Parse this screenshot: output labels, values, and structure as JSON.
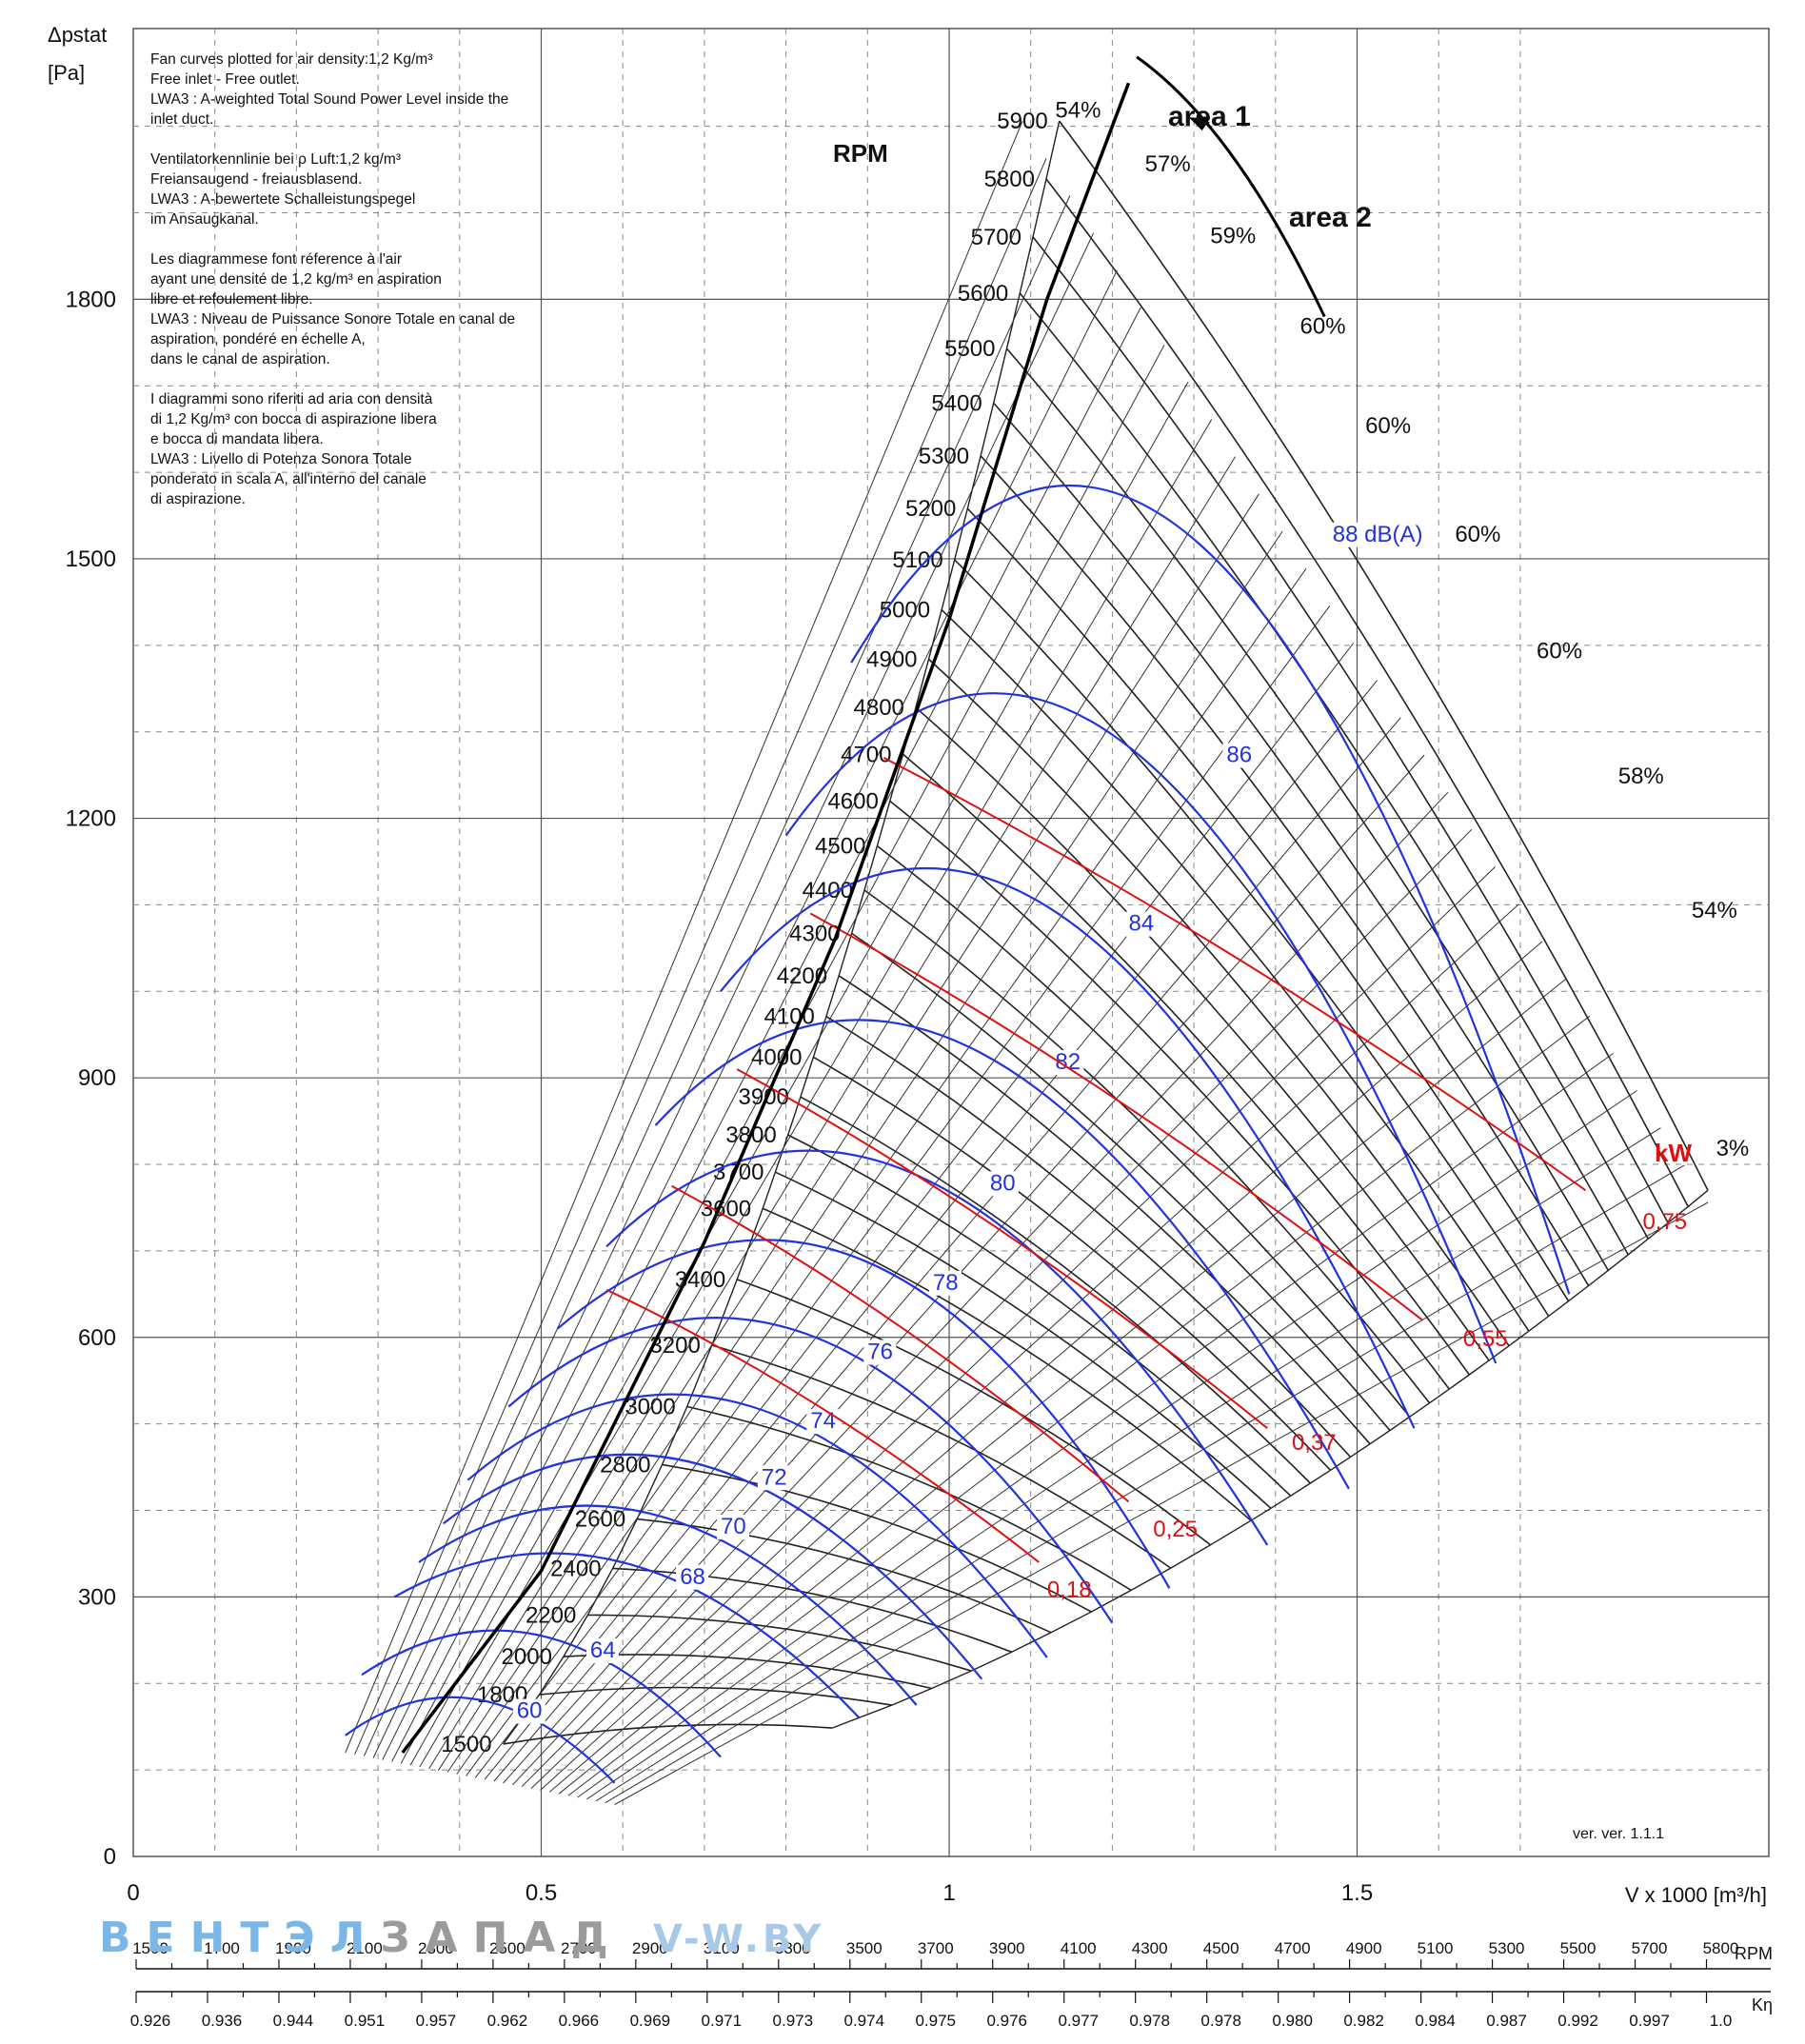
{
  "axis": {
    "y_label_line1": "Δpstat",
    "y_label_line2": "[Pa]",
    "x_label": "V x 1000 [m³/h]",
    "y_ticks": [
      {
        "value": 0,
        "label": "0"
      },
      {
        "value": 300,
        "label": "300"
      },
      {
        "value": 600,
        "label": "600"
      },
      {
        "value": 900,
        "label": "900"
      },
      {
        "value": 1200,
        "label": "1200"
      },
      {
        "value": 1500,
        "label": "1500"
      },
      {
        "value": 1800,
        "label": "1800"
      }
    ],
    "x_ticks": [
      {
        "value": 0,
        "label": "0"
      },
      {
        "value": 0.5,
        "label": "0.5"
      },
      {
        "value": 1,
        "label": "1"
      },
      {
        "value": 1.5,
        "label": "1.5"
      }
    ]
  },
  "notes": [
    [
      "Fan curves plotted for air density:1,2 Kg/m³",
      "Free inlet - Free outlet.",
      "LWA3 : A-weighted Total Sound Power Level inside the",
      "inlet duct."
    ],
    [
      "Ventilatorkennlinie bei ρ Luft:1,2 kg/m³",
      "Freiansaugend - freiausblasend.",
      "LWA3 : A-bewertete Schalleistungspegel",
      "im Ansaugkanal."
    ],
    [
      "Les diagrammese font réference à l'air",
      "ayant une densité de 1,2 kg/m³ en aspiration",
      "libre et refoulement libre.",
      "LWA3 : Niveau de Puissance Sonore Totale en canal de",
      "aspiration, pondéré en échelle A,",
      "dans le canal de aspiration."
    ],
    [
      "I diagrammi sono riferiti ad aria con densità",
      "di 1,2 Kg/m³ con bocca di aspirazione libera",
      "e bocca di mandata libera.",
      "LWA3 : Livello di Potenza Sonora Totale",
      "ponderato in scala A, all'interno del canale",
      "di aspirazione."
    ]
  ],
  "labels": {
    "rpm_title": "RPM",
    "area1": "area 1",
    "area2": "area 2",
    "kw": "kW",
    "version": "ver. ver. 1.1.1"
  },
  "brand": {
    "part1": "ВЕНТЭЛ",
    "part2": "ЗАПАД",
    "part3": "V-W.BY"
  },
  "bottom_scale": {
    "rpm_label": "RPM",
    "k_label": "Kη",
    "rpm_values": [
      "1500",
      "1700",
      "1900",
      "2100",
      "2300",
      "2500",
      "2700",
      "2900",
      "3100",
      "3300",
      "3500",
      "3700",
      "3900",
      "4100",
      "4300",
      "4500",
      "4700",
      "4900",
      "5100",
      "5300",
      "5500",
      "5700",
      "5800"
    ],
    "k_values": [
      "0.926",
      "0.936",
      "0.944",
      "0.951",
      "0.957",
      "0.962",
      "0.966",
      "0.969",
      "0.971",
      "0.973",
      "0.974",
      "0.975",
      "0.976",
      "0.977",
      "0.978",
      "0.978",
      "0.980",
      "0.982",
      "0.984",
      "0.987",
      "0.992",
      "0.997",
      "1.0"
    ]
  },
  "chart_data": {
    "type": "line",
    "title": "",
    "xlabel": "V x 1000 [m³/h]",
    "ylabel": "Δpstat [Pa]",
    "xlim": [
      0,
      1.8
    ],
    "ylim": [
      0,
      2100
    ],
    "grid": true,
    "speed_curves": [
      {
        "rpm": "1500",
        "y0": 130
      },
      {
        "rpm": "1800",
        "y0": 187
      },
      {
        "rpm": "2000",
        "y0": 231
      },
      {
        "rpm": "2200",
        "y0": 279
      },
      {
        "rpm": "2400",
        "y0": 333
      },
      {
        "rpm": "2600",
        "y0": 390
      },
      {
        "rpm": "2800",
        "y0": 453
      },
      {
        "rpm": "3000",
        "y0": 520
      },
      {
        "rpm": "3200",
        "y0": 591
      },
      {
        "rpm": "3400",
        "y0": 667
      },
      {
        "rpm": "3600",
        "y0": 749
      },
      {
        "rpm": "3700",
        "y0": 791
      },
      {
        "rpm": "3800",
        "y0": 834
      },
      {
        "rpm": "3900",
        "y0": 878
      },
      {
        "rpm": "4000",
        "y0": 924
      },
      {
        "rpm": "4100",
        "y0": 971
      },
      {
        "rpm": "4200",
        "y0": 1018
      },
      {
        "rpm": "4300",
        "y0": 1067
      },
      {
        "rpm": "4400",
        "y0": 1117
      },
      {
        "rpm": "4500",
        "y0": 1168
      },
      {
        "rpm": "4600",
        "y0": 1220
      },
      {
        "rpm": "4700",
        "y0": 1274
      },
      {
        "rpm": "4800",
        "y0": 1328
      },
      {
        "rpm": "4900",
        "y0": 1384
      },
      {
        "rpm": "5000",
        "y0": 1441
      },
      {
        "rpm": "5100",
        "y0": 1499
      },
      {
        "rpm": "5200",
        "y0": 1558
      },
      {
        "rpm": "5300",
        "y0": 1619
      },
      {
        "rpm": "5400",
        "y0": 1680
      },
      {
        "rpm": "5500",
        "y0": 1743
      },
      {
        "rpm": "5600",
        "y0": 1807
      },
      {
        "rpm": "5700",
        "y0": 1872
      },
      {
        "rpm": "5800",
        "y0": 1939
      },
      {
        "rpm": "5900",
        "y0": 2006
      }
    ],
    "efficiency_labels": [
      {
        "label": "54%",
        "x": 1.13,
        "y": 2010
      },
      {
        "label": "57%",
        "x": 1.24,
        "y": 1948
      },
      {
        "label": "59%",
        "x": 1.32,
        "y": 1865
      },
      {
        "label": "60%",
        "x": 1.43,
        "y": 1760
      },
      {
        "label": "60%",
        "x": 1.51,
        "y": 1645
      },
      {
        "label": "60%",
        "x": 1.62,
        "y": 1520
      },
      {
        "label": "60%",
        "x": 1.72,
        "y": 1385
      },
      {
        "label": "58%",
        "x": 1.82,
        "y": 1240
      },
      {
        "label": "54%",
        "x": 1.91,
        "y": 1085
      },
      {
        "label": "3%",
        "x": 1.94,
        "y": 810
      }
    ],
    "sound_curves": [
      {
        "label": "60",
        "start": [
          0.26,
          140
        ],
        "peak": [
          0.42,
          185
        ],
        "end": [
          0.59,
          85
        ],
        "label_at": [
          0.47,
          160
        ]
      },
      {
        "label": "64",
        "start": [
          0.28,
          210
        ],
        "peak": [
          0.5,
          260
        ],
        "end": [
          0.72,
          115
        ],
        "label_at": [
          0.56,
          230
        ]
      },
      {
        "label": "68",
        "start": [
          0.32,
          300
        ],
        "peak": [
          0.6,
          345
        ],
        "end": [
          0.89,
          160
        ],
        "label_at": [
          0.67,
          315
        ]
      },
      {
        "label": "70",
        "start": [
          0.35,
          340
        ],
        "peak": [
          0.64,
          400
        ],
        "end": [
          0.96,
          175
        ],
        "label_at": [
          0.72,
          373
        ]
      },
      {
        "label": "72",
        "start": [
          0.38,
          385
        ],
        "peak": [
          0.69,
          460
        ],
        "end": [
          1.04,
          205
        ],
        "label_at": [
          0.77,
          430
        ]
      },
      {
        "label": "74",
        "start": [
          0.41,
          435
        ],
        "peak": [
          0.75,
          530
        ],
        "end": [
          1.12,
          230
        ],
        "label_at": [
          0.83,
          495
        ]
      },
      {
        "label": "76",
        "start": [
          0.46,
          520
        ],
        "peak": [
          0.82,
          615
        ],
        "end": [
          1.2,
          270
        ],
        "label_at": [
          0.9,
          575
        ]
      },
      {
        "label": "78",
        "start": [
          0.52,
          610
        ],
        "peak": [
          0.9,
          700
        ],
        "end": [
          1.27,
          310
        ],
        "label_at": [
          0.98,
          655
        ]
      },
      {
        "label": "80",
        "start": [
          0.58,
          705
        ],
        "peak": [
          0.94,
          800
        ],
        "end": [
          1.39,
          360
        ],
        "label_at": [
          1.05,
          770
        ]
      },
      {
        "label": "82",
        "start": [
          0.64,
          845
        ],
        "peak": [
          1.01,
          945
        ],
        "end": [
          1.49,
          425
        ],
        "label_at": [
          1.13,
          910
        ]
      },
      {
        "label": "84",
        "start": [
          0.72,
          1000
        ],
        "peak": [
          1.1,
          1115
        ],
        "end": [
          1.57,
          495
        ],
        "label_at": [
          1.22,
          1070
        ]
      },
      {
        "label": "86",
        "start": [
          0.8,
          1180
        ],
        "peak": [
          1.19,
          1310
        ],
        "end": [
          1.67,
          570
        ],
        "label_at": [
          1.34,
          1265
        ]
      },
      {
        "label": "88 dB(A)",
        "start": [
          0.88,
          1380
        ],
        "peak": [
          1.29,
          1545
        ],
        "end": [
          1.76,
          650
        ],
        "label_at": [
          1.47,
          1520
        ]
      }
    ],
    "power_curves": [
      {
        "label": "0,18",
        "start": [
          0.58,
          655
        ],
        "end": [
          1.11,
          340
        ],
        "label_at": [
          1.12,
          300
        ]
      },
      {
        "label": "0,25",
        "start": [
          0.66,
          775
        ],
        "end": [
          1.22,
          410
        ],
        "label_at": [
          1.25,
          370
        ]
      },
      {
        "label": "0,37",
        "start": [
          0.74,
          910
        ],
        "end": [
          1.39,
          495
        ],
        "label_at": [
          1.42,
          470
        ]
      },
      {
        "label": "0,55",
        "start": [
          0.83,
          1090
        ],
        "end": [
          1.58,
          620
        ],
        "label_at": [
          1.63,
          590
        ]
      },
      {
        "label": "0,75",
        "start": [
          0.92,
          1270
        ],
        "end": [
          1.78,
          770
        ],
        "label_at": [
          1.85,
          725
        ]
      }
    ],
    "operating_curve": [
      [
        0.33,
        120
      ],
      [
        0.5,
        330
      ],
      [
        0.7,
        710
      ],
      [
        0.86,
        1060
      ],
      [
        1.0,
        1430
      ],
      [
        1.12,
        1800
      ],
      [
        1.22,
        2050
      ]
    ]
  }
}
